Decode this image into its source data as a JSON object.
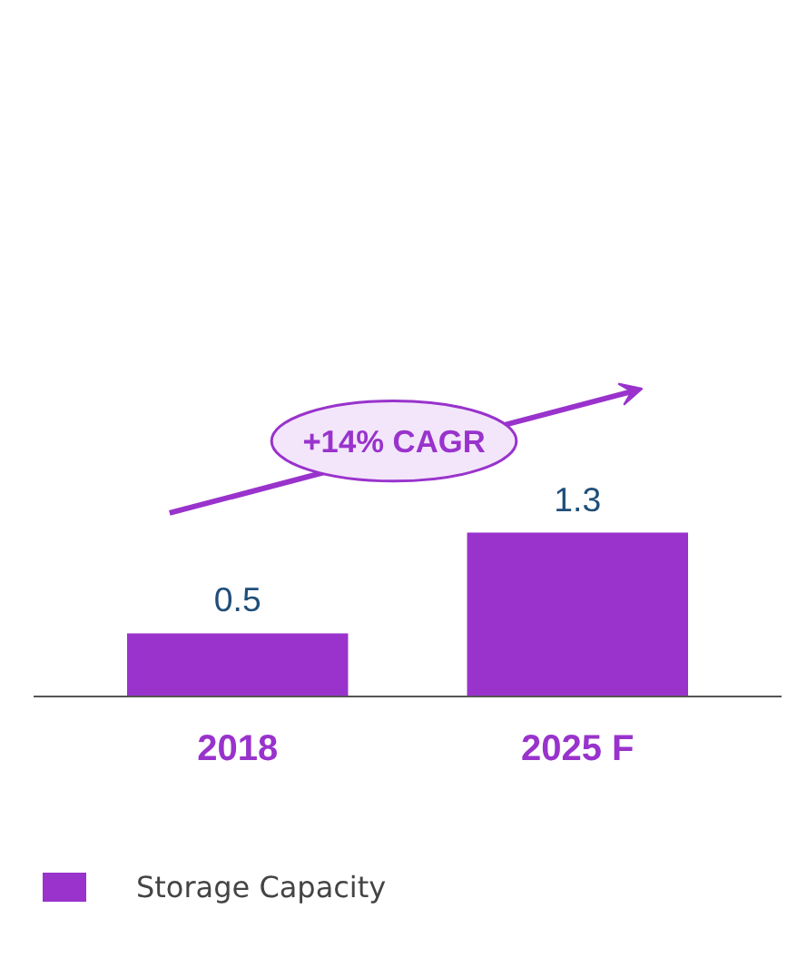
{
  "chart_data": {
    "type": "bar",
    "categories": [
      "2018",
      "2025 F"
    ],
    "series": [
      {
        "name": "Storage Capacity",
        "color": "#9933cc",
        "values": [
          0.5,
          1.3
        ]
      }
    ],
    "data_labels": true,
    "legend": "bottom",
    "grid": false,
    "tick_labels": "x",
    "annotations": [
      "+14% CAGR"
    ]
  }
}
